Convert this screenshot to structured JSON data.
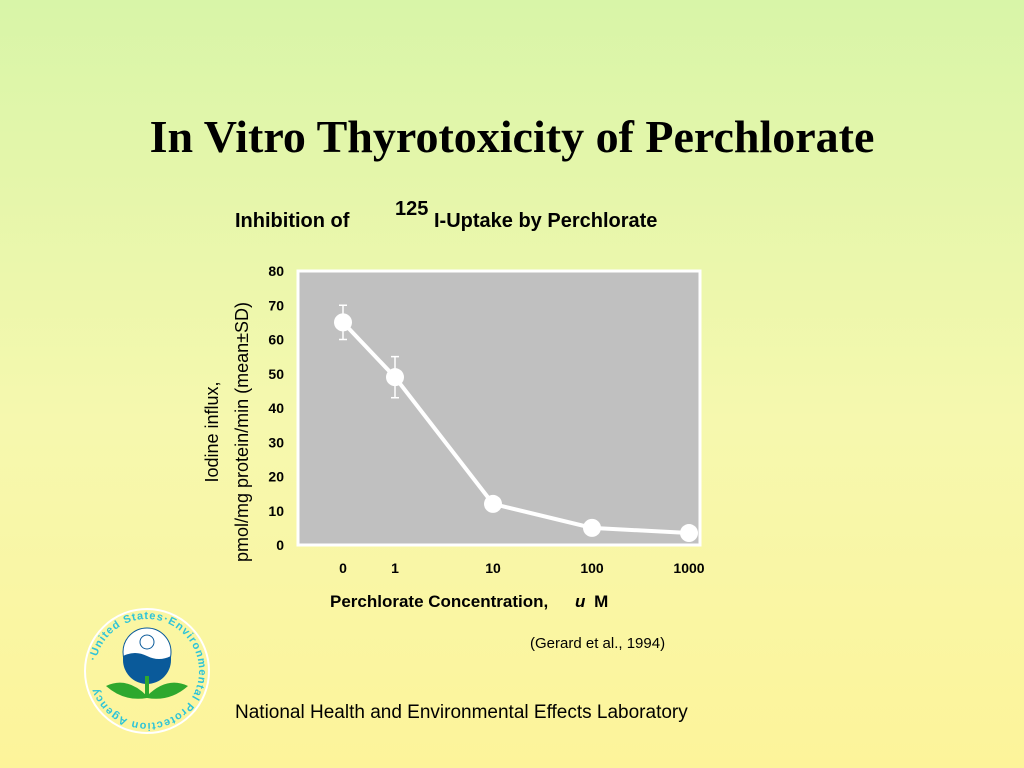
{
  "slide": {
    "title": "In Vitro Thyrotoxicity of Perchlorate",
    "citation": "(Gerard et al., 1994)",
    "footer": "National Health and Environmental Effects Laboratory",
    "seal_text": "·United States·Environmental Protection Agency"
  },
  "chart_data": {
    "type": "line",
    "title_prefix": "Inhibition of",
    "title_superscript": "125",
    "title_suffix": "I-Uptake by Perchlorate",
    "categories": [
      "0",
      "1",
      "10",
      "100",
      "1000"
    ],
    "series": [
      {
        "values": [
          65,
          49,
          12,
          5,
          3.5
        ],
        "error_sd": [
          5,
          6,
          0,
          0,
          0
        ]
      }
    ],
    "ylabel_line1": "Iodine influx,",
    "ylabel_line2": "pmol/mg protein/min (mean±SD)",
    "xlabel_main": "Perchlorate Concentration,",
    "xlabel_unit_italic": "u",
    "xlabel_unit": "M",
    "ylim": [
      0,
      80
    ],
    "yticks": [
      "0",
      "10",
      "20",
      "30",
      "40",
      "50",
      "60",
      "70",
      "80"
    ],
    "grid": false,
    "legend": "none",
    "colors": {
      "plot_bg": "#c0c0c0",
      "plot_border": "#ffffff",
      "line": "#ffffff",
      "marker": "#ffffff"
    }
  }
}
